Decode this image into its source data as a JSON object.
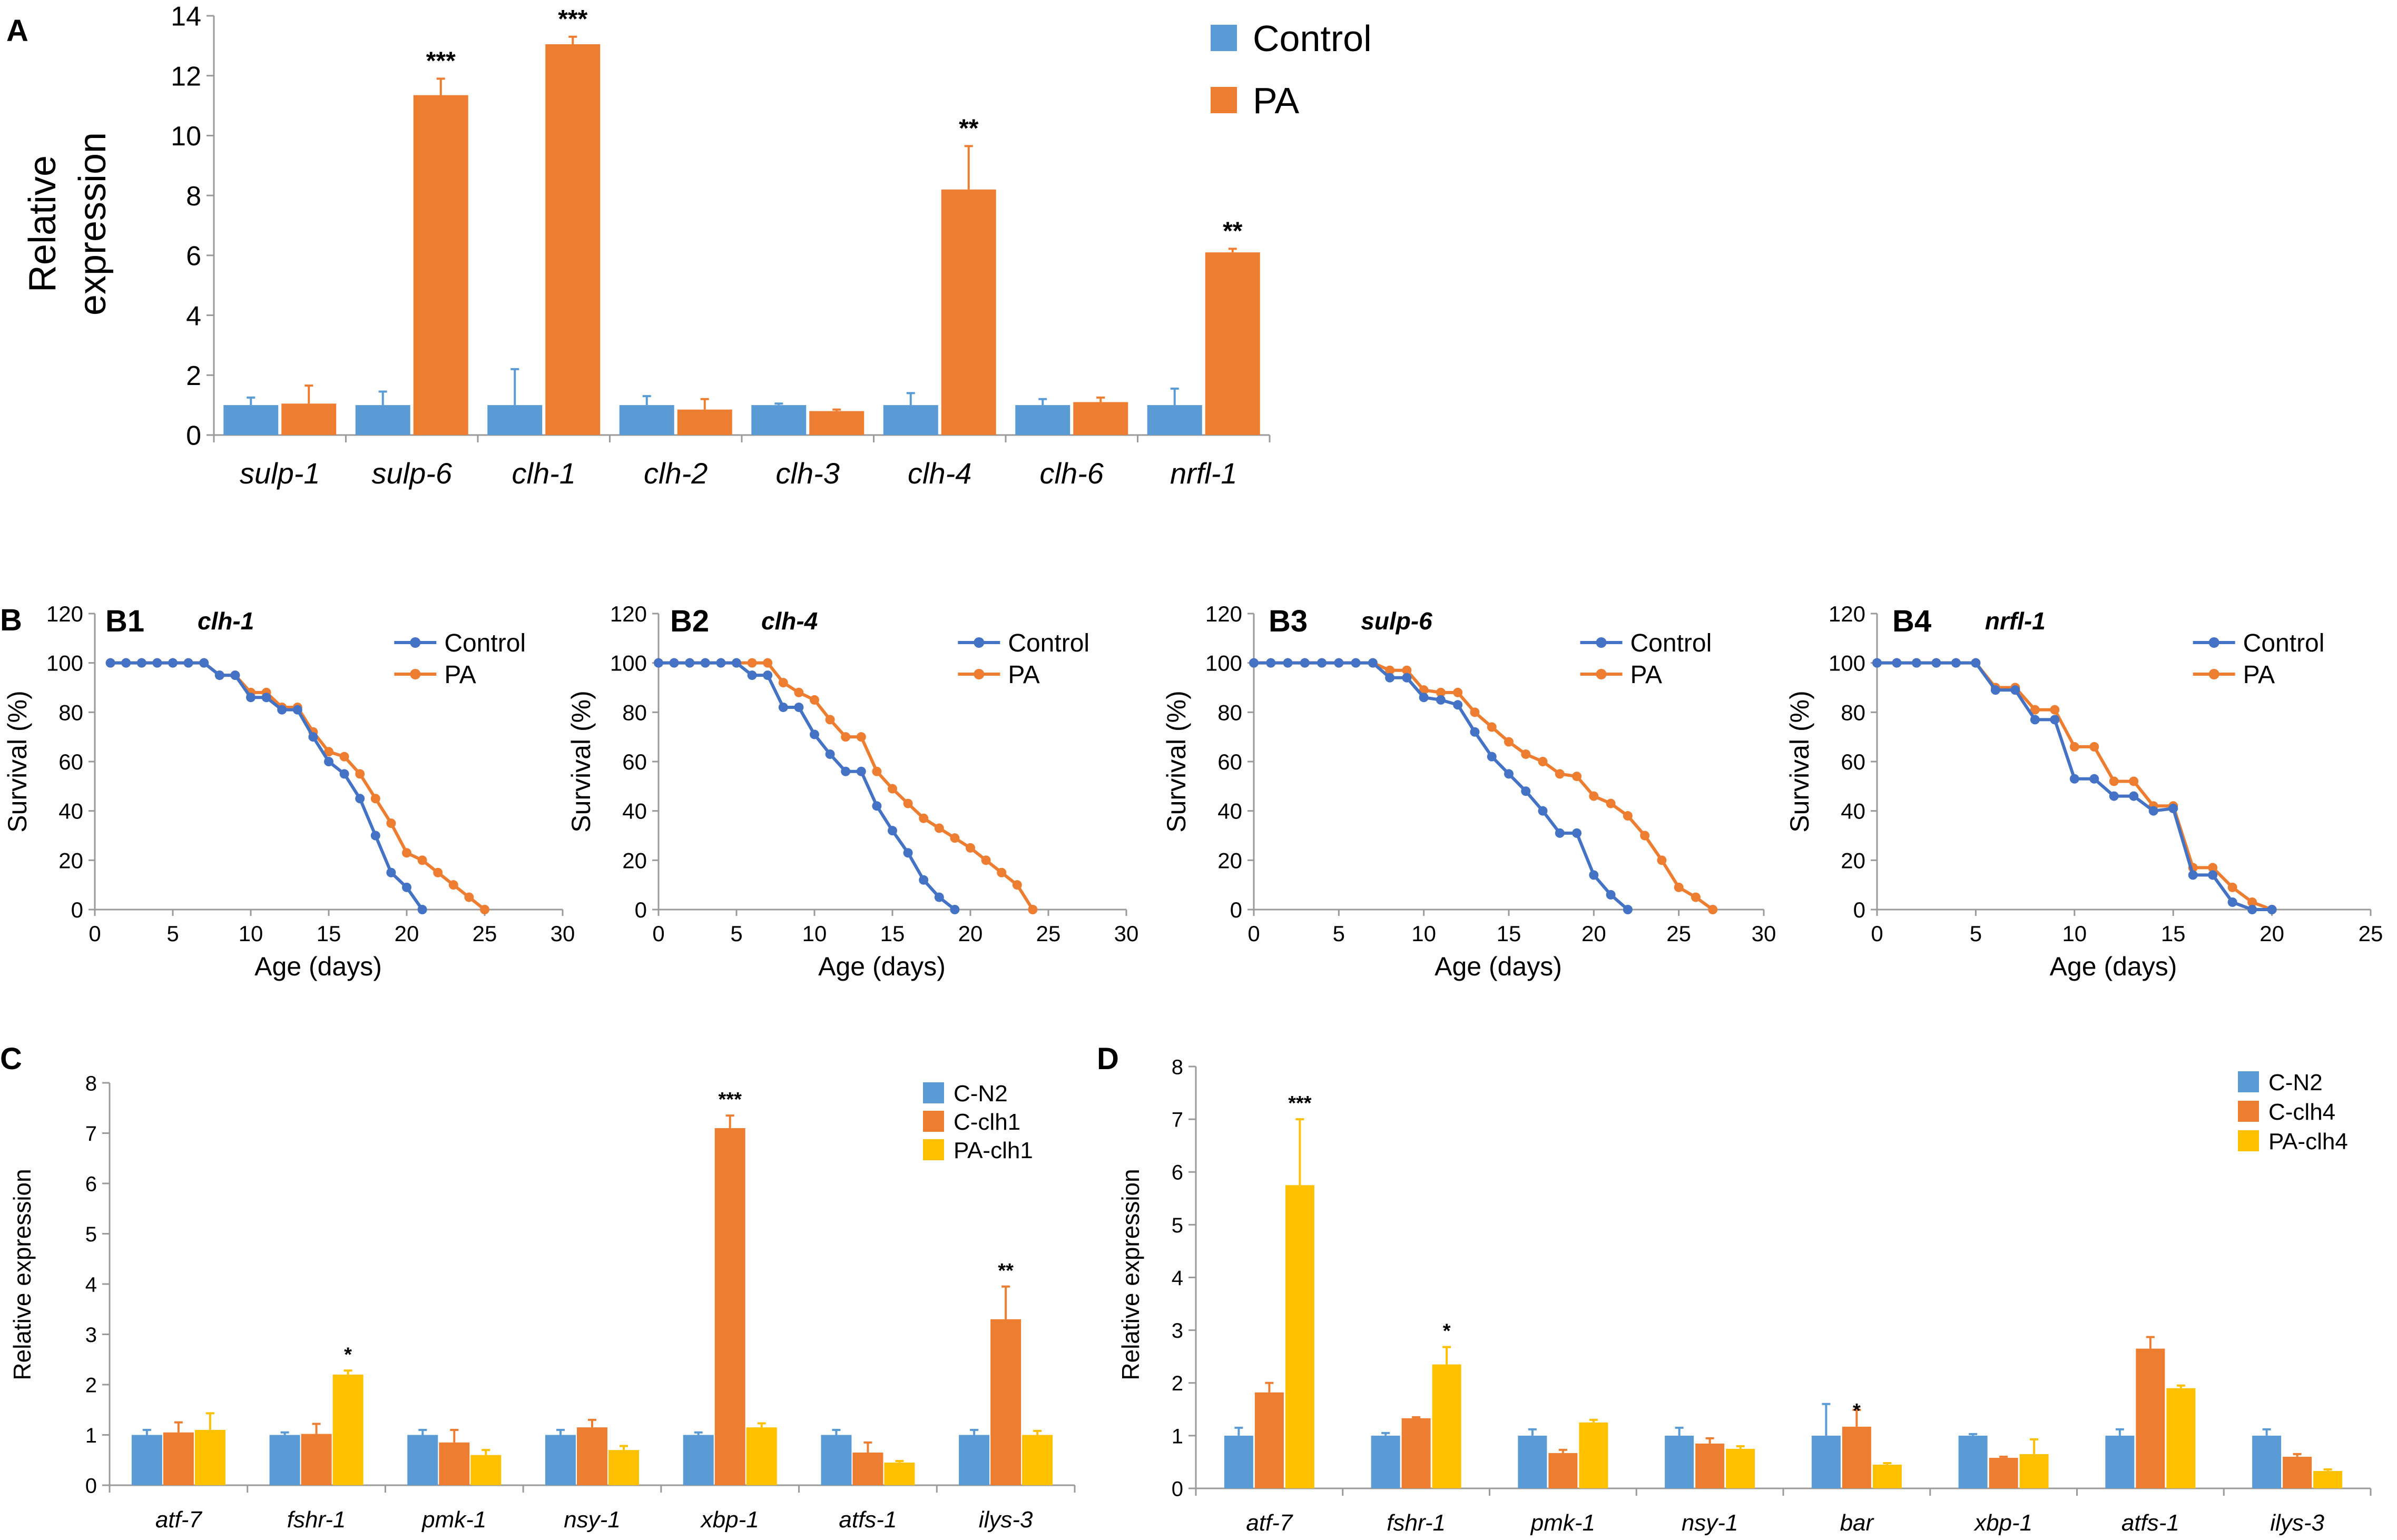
{
  "colors": {
    "control": "#5B9BD5",
    "pa": "#ED7D31",
    "pa_yellow": "#FFC000",
    "survival_control": "#4472C4",
    "axis": "#9a9a9a",
    "text": "#000000"
  },
  "chart_data": [
    {
      "id": "A",
      "panel_label": "A",
      "type": "bar",
      "ylabel_line1": "Relative",
      "ylabel_line2": "expression",
      "ylim": [
        0,
        14
      ],
      "yticks": [
        0,
        2,
        4,
        6,
        8,
        10,
        12,
        14
      ],
      "categories": [
        "sulp-1",
        "sulp-6",
        "clh-1",
        "clh-2",
        "clh-3",
        "clh-4",
        "clh-6",
        "nrfl-1"
      ],
      "series": [
        {
          "name": "Control",
          "color": "#5B9BD5",
          "values": [
            1.0,
            1.0,
            1.0,
            1.0,
            1.0,
            1.0,
            1.0,
            1.0
          ],
          "errors": [
            0.25,
            0.45,
            1.2,
            0.3,
            0.05,
            0.4,
            0.2,
            0.55
          ]
        },
        {
          "name": "PA",
          "color": "#ED7D31",
          "values": [
            1.05,
            11.35,
            13.05,
            0.85,
            0.8,
            8.2,
            1.1,
            6.1
          ],
          "errors": [
            0.6,
            0.55,
            0.25,
            0.35,
            0.05,
            1.45,
            0.15,
            0.12
          ]
        }
      ],
      "significance": [
        "",
        "***",
        "***",
        "",
        "",
        "**",
        "",
        "**"
      ]
    },
    {
      "id": "B1",
      "panel_label": "B1",
      "type": "line",
      "title": "clh-1",
      "xlabel": "Age (days)",
      "ylabel": "Survival (%)",
      "xlim": [
        0,
        30
      ],
      "ylim": [
        0,
        120
      ],
      "xticks": [
        0,
        5,
        10,
        15,
        20,
        25,
        30
      ],
      "yticks": [
        0,
        20,
        40,
        60,
        80,
        100,
        120
      ],
      "series": [
        {
          "name": "Control",
          "color": "#4472C4",
          "x": [
            1,
            2,
            3,
            4,
            5,
            6,
            7,
            8,
            9,
            10,
            11,
            12,
            13,
            14,
            15,
            16,
            17,
            18,
            19,
            20,
            21
          ],
          "y": [
            100,
            100,
            100,
            100,
            100,
            100,
            100,
            95,
            95,
            86,
            86,
            81,
            81,
            70,
            60,
            55,
            45,
            30,
            15,
            9,
            0
          ]
        },
        {
          "name": "PA",
          "color": "#ED7D31",
          "x": [
            1,
            2,
            3,
            4,
            5,
            6,
            7,
            8,
            9,
            10,
            11,
            12,
            13,
            14,
            15,
            16,
            17,
            18,
            19,
            20,
            21,
            22,
            23,
            24,
            25
          ],
          "y": [
            100,
            100,
            100,
            100,
            100,
            100,
            100,
            95,
            95,
            88,
            88,
            82,
            82,
            72,
            64,
            62,
            55,
            45,
            35,
            23,
            20,
            15,
            10,
            5,
            0
          ]
        }
      ]
    },
    {
      "id": "B2",
      "panel_label": "B2",
      "type": "line",
      "title": "clh-4",
      "xlabel": "Age (days)",
      "ylabel": "Survival (%)",
      "xlim": [
        0,
        30
      ],
      "ylim": [
        0,
        120
      ],
      "xticks": [
        0,
        5,
        10,
        15,
        20,
        25,
        30
      ],
      "yticks": [
        0,
        20,
        40,
        60,
        80,
        100,
        120
      ],
      "series": [
        {
          "name": "Control",
          "color": "#4472C4",
          "x": [
            0,
            1,
            2,
            3,
            4,
            5,
            6,
            7,
            8,
            9,
            10,
            11,
            12,
            13,
            14,
            15,
            16,
            17,
            18,
            19
          ],
          "y": [
            100,
            100,
            100,
            100,
            100,
            100,
            95,
            95,
            82,
            82,
            71,
            63,
            56,
            56,
            42,
            32,
            23,
            12,
            5,
            0
          ]
        },
        {
          "name": "PA",
          "color": "#ED7D31",
          "x": [
            0,
            1,
            2,
            3,
            4,
            5,
            6,
            7,
            8,
            9,
            10,
            11,
            12,
            13,
            14,
            15,
            16,
            17,
            18,
            19,
            20,
            21,
            22,
            23,
            24
          ],
          "y": [
            100,
            100,
            100,
            100,
            100,
            100,
            100,
            100,
            92,
            88,
            85,
            77,
            70,
            70,
            56,
            49,
            43,
            37,
            33,
            29,
            25,
            20,
            15,
            10,
            0
          ]
        }
      ]
    },
    {
      "id": "B3",
      "panel_label": "B3",
      "type": "line",
      "title": "sulp-6",
      "xlabel": "Age (days)",
      "ylabel": "Survival (%)",
      "xlim": [
        0,
        30
      ],
      "ylim": [
        0,
        120
      ],
      "xticks": [
        0,
        5,
        10,
        15,
        20,
        25,
        30
      ],
      "yticks": [
        0,
        20,
        40,
        60,
        80,
        100,
        120
      ],
      "series": [
        {
          "name": "Control",
          "color": "#4472C4",
          "x": [
            0,
            1,
            2,
            3,
            4,
            5,
            6,
            7,
            8,
            9,
            10,
            11,
            12,
            13,
            14,
            15,
            16,
            17,
            18,
            19,
            20,
            21,
            22
          ],
          "y": [
            100,
            100,
            100,
            100,
            100,
            100,
            100,
            100,
            94,
            94,
            86,
            85,
            83,
            72,
            62,
            55,
            48,
            40,
            31,
            31,
            14,
            6,
            0
          ]
        },
        {
          "name": "PA",
          "color": "#ED7D31",
          "x": [
            0,
            1,
            2,
            3,
            4,
            5,
            6,
            7,
            8,
            9,
            10,
            11,
            12,
            13,
            14,
            15,
            16,
            17,
            18,
            19,
            20,
            21,
            22,
            23,
            24,
            25,
            26,
            27
          ],
          "y": [
            100,
            100,
            100,
            100,
            100,
            100,
            100,
            100,
            97,
            97,
            89,
            88,
            88,
            80,
            74,
            68,
            63,
            60,
            55,
            54,
            46,
            43,
            38,
            30,
            20,
            9,
            5,
            0
          ]
        }
      ]
    },
    {
      "id": "B4",
      "panel_label": "B4",
      "type": "line",
      "title": "nrfl-1",
      "xlabel": "Age (days)",
      "ylabel": "Survival (%)",
      "xlim": [
        0,
        25
      ],
      "ylim": [
        0,
        120
      ],
      "xticks": [
        0,
        5,
        10,
        15,
        20,
        25
      ],
      "yticks": [
        0,
        20,
        40,
        60,
        80,
        100,
        120
      ],
      "series": [
        {
          "name": "Control",
          "color": "#4472C4",
          "x": [
            0,
            1,
            2,
            3,
            4,
            5,
            6,
            7,
            8,
            9,
            10,
            11,
            12,
            13,
            14,
            15,
            16,
            17,
            18,
            19,
            20
          ],
          "y": [
            100,
            100,
            100,
            100,
            100,
            100,
            89,
            89,
            77,
            77,
            53,
            53,
            46,
            46,
            40,
            41,
            14,
            14,
            3,
            0,
            0
          ]
        },
        {
          "name": "PA",
          "color": "#ED7D31",
          "x": [
            0,
            1,
            2,
            3,
            4,
            5,
            6,
            7,
            8,
            9,
            10,
            11,
            12,
            13,
            14,
            15,
            16,
            17,
            18,
            19,
            20
          ],
          "y": [
            100,
            100,
            100,
            100,
            100,
            100,
            90,
            90,
            81,
            81,
            66,
            66,
            52,
            52,
            42,
            42,
            17,
            17,
            9,
            3,
            0
          ]
        }
      ]
    },
    {
      "id": "C",
      "panel_label": "C",
      "type": "bar",
      "ylabel": "Relative expression",
      "ylim": [
        0,
        8
      ],
      "yticks": [
        0,
        1,
        2,
        3,
        4,
        5,
        6,
        7,
        8
      ],
      "categories": [
        "atf-7",
        "fshr-1",
        "pmk-1",
        "nsy-1",
        "xbp-1",
        "atfs-1",
        "ilys-3"
      ],
      "series": [
        {
          "name": "C-N2",
          "color": "#5B9BD5",
          "values": [
            1.0,
            1.0,
            1.0,
            1.0,
            1.0,
            1.0,
            1.0
          ],
          "errors": [
            0.1,
            0.05,
            0.1,
            0.1,
            0.05,
            0.1,
            0.1
          ]
        },
        {
          "name": "C-clh1",
          "color": "#ED7D31",
          "values": [
            1.05,
            1.02,
            0.85,
            1.15,
            7.1,
            0.65,
            3.3
          ],
          "errors": [
            0.2,
            0.2,
            0.25,
            0.15,
            0.25,
            0.2,
            0.65
          ]
        },
        {
          "name": "PA-clh1",
          "color": "#FFC000",
          "values": [
            1.1,
            2.2,
            0.6,
            0.7,
            1.15,
            0.45,
            1.0
          ],
          "errors": [
            0.33,
            0.08,
            0.1,
            0.08,
            0.08,
            0.03,
            0.08
          ]
        }
      ],
      "significance": [
        "",
        "*",
        "",
        "",
        "***",
        "",
        "**"
      ]
    },
    {
      "id": "D",
      "panel_label": "D",
      "type": "bar",
      "ylabel": "Relative expression",
      "ylim": [
        0,
        8
      ],
      "yticks": [
        0,
        1,
        2,
        3,
        4,
        5,
        6,
        7,
        8
      ],
      "categories": [
        "atf-7",
        "fshr-1",
        "pmk-1",
        "nsy-1",
        "bar",
        "xbp-1",
        "atfs-1",
        "ilys-3"
      ],
      "series": [
        {
          "name": "C-N2",
          "color": "#5B9BD5",
          "values": [
            1.0,
            1.0,
            1.0,
            1.0,
            1.0,
            1.0,
            1.0,
            1.0
          ],
          "errors": [
            0.15,
            0.05,
            0.12,
            0.15,
            0.6,
            0.03,
            0.12,
            0.12
          ]
        },
        {
          "name": "C-clh4",
          "color": "#ED7D31",
          "values": [
            1.82,
            1.33,
            0.67,
            0.85,
            1.17,
            0.58,
            2.65,
            0.6
          ]
        },
        {
          "name": "PA-clh4",
          "color": "#FFC000",
          "values": [
            5.75,
            2.35,
            1.25,
            0.75,
            0.45,
            0.65,
            1.9,
            0.33
          ],
          "errors": [
            1.25,
            0.33,
            0.05,
            0.05,
            0.03,
            0.28,
            0.05,
            0.03
          ]
        }
      ],
      "c_clh4_errors": [
        0.18,
        0.02,
        0.06,
        0.1,
        0.32,
        0.02,
        0.22,
        0.05
      ],
      "significance": [
        "***",
        "*",
        "",
        "",
        "*",
        "",
        "",
        ""
      ]
    }
  ]
}
